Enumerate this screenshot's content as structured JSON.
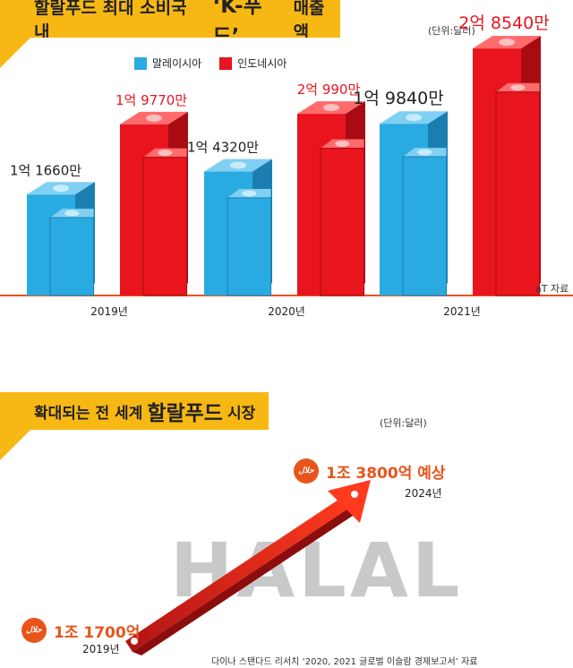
{
  "chart_data": [
    {
      "type": "bar",
      "title": "할랄푸드 최대 소비국 내 ‘K-푸드’ 매출액",
      "title_parts": [
        "할랄푸드 최대 소비국 내 ",
        "‘K-푸드’",
        " 매출액"
      ],
      "unit": "(단위:달러)",
      "categories": [
        "2019년",
        "2020년",
        "2021년"
      ],
      "series": [
        {
          "name": "말레이시아",
          "color": "#29abe2",
          "values": [
            116600000,
            143200000,
            198400000
          ],
          "labels": [
            "1억 1660만",
            "1억 4320만",
            "1억 9840만"
          ]
        },
        {
          "name": "인도네시아",
          "color": "#e8141e",
          "values": [
            197700000,
            209900000,
            285400000
          ],
          "labels": [
            "1억 9770만",
            "2억 990만",
            "2억 8540만"
          ]
        }
      ],
      "ylim": [
        0,
        300000000
      ],
      "source": "aT 자료"
    },
    {
      "type": "line",
      "title": "확대되는 전 세계 할랄푸드 시장",
      "title_parts": [
        "확대되는 전 세계 ",
        "할랄푸드",
        " 시장"
      ],
      "unit": "(단위:달러)",
      "x": [
        "2019년",
        "2024년"
      ],
      "values": [
        1170000000000,
        1380000000000
      ],
      "labels": [
        "1조 1700억",
        "1조 3800억 예상"
      ],
      "background_word": "HALAL",
      "icon_text": "حلال",
      "source": "다이나 스탠다드 리서치 ‘2020, 2021 글로벌 이슬람 경제보고서’ 자료"
    }
  ]
}
